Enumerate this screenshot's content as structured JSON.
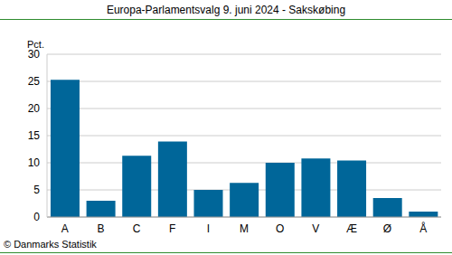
{
  "chart_data": {
    "type": "bar",
    "title": "Europa-Parlamentsvalg 9. juni 2024 - Sakskøbing",
    "y_label": "Pct.",
    "annotations": [
      "© Danmarks Statistik"
    ],
    "categories": [
      "A",
      "B",
      "C",
      "F",
      "I",
      "M",
      "O",
      "V",
      "Æ",
      "Ø",
      "Å"
    ],
    "values": [
      25.3,
      3.0,
      11.3,
      13.9,
      5.0,
      6.3,
      10.0,
      10.8,
      10.4,
      3.5,
      1.0
    ],
    "color": "#006699",
    "ylim": [
      0,
      30
    ],
    "yticks": [
      0,
      5,
      10,
      15,
      20,
      25,
      30
    ],
    "grid": true
  }
}
